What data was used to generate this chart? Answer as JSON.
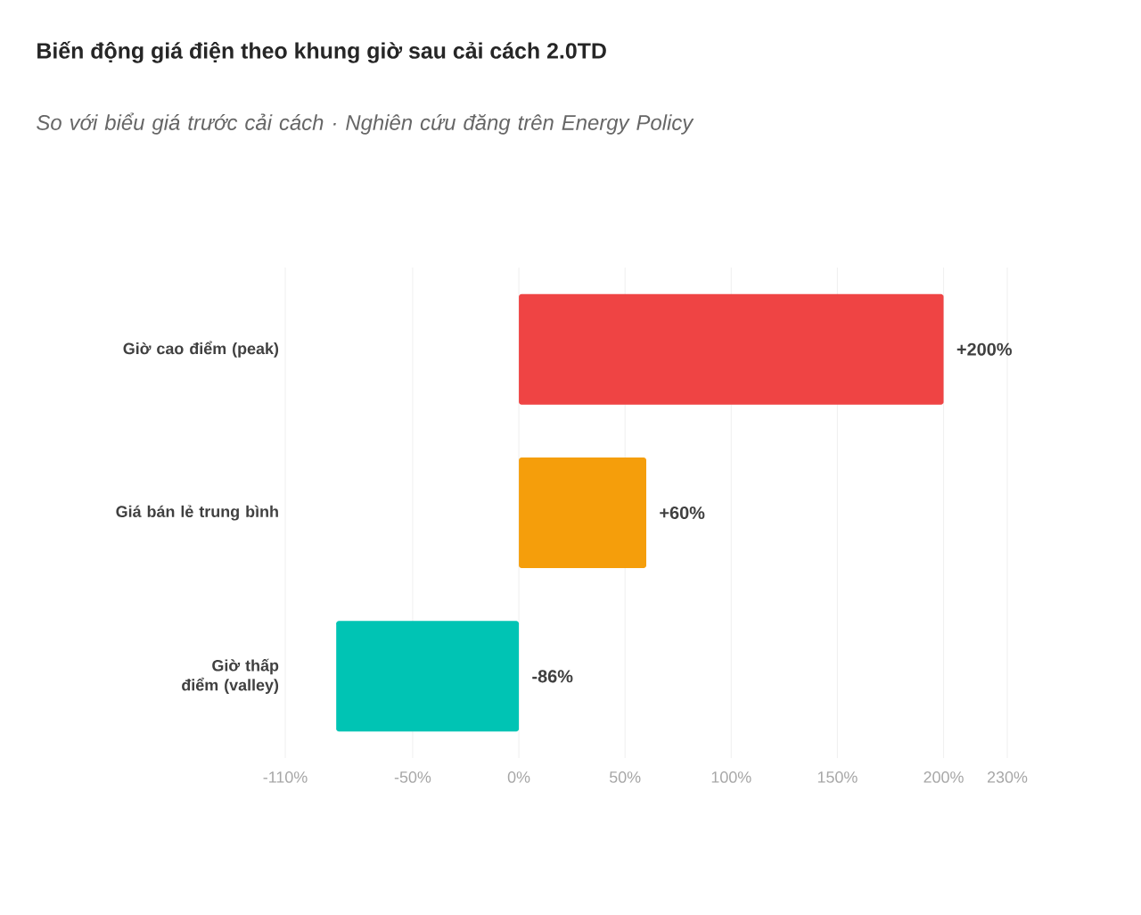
{
  "chart_data": {
    "type": "bar",
    "orientation": "horizontal",
    "title": "Biến động giá điện theo khung giờ sau cải cách 2.0TD",
    "subtitle": "So với biểu giá trước cải cách · Nghiên cứu đăng trên Energy Policy",
    "categories": [
      "Giờ cao điểm (peak)",
      "Giá bán lẻ trung bình",
      "Giờ thấp điểm (valley)"
    ],
    "values": [
      200,
      60,
      -86
    ],
    "colors": [
      "#ef4444",
      "#f59e0b",
      "#00c4b4"
    ],
    "value_labels": [
      "+200%",
      "+60%",
      "-86%"
    ],
    "xlim": [
      -110,
      230
    ],
    "xticks": [
      {
        "value": -110,
        "label": "-110%"
      },
      {
        "value": -50,
        "label": "-50%"
      },
      {
        "value": 0,
        "label": "0%"
      },
      {
        "value": 50,
        "label": "50%"
      },
      {
        "value": 100,
        "label": "100%"
      },
      {
        "value": 150,
        "label": "150%"
      },
      {
        "value": 200,
        "label": "200%"
      },
      {
        "value": 230,
        "label": "230%"
      }
    ],
    "grid": "x"
  }
}
